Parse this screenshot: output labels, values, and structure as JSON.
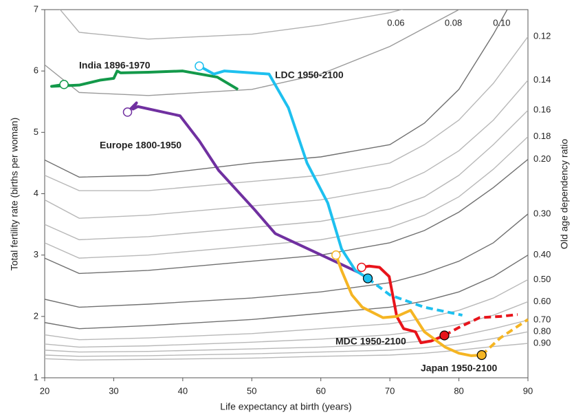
{
  "chart_data": {
    "type": "line",
    "x_label": "Life expectancy at birth (years)",
    "y_label": "Total fertility rate (births per woman)",
    "y2_label": "Old age dependency ratio",
    "xlim": [
      20,
      90
    ],
    "xticks": [
      20,
      30,
      40,
      50,
      60,
      70,
      80,
      90
    ],
    "ylim": [
      1,
      7
    ],
    "yticks": [
      1,
      2,
      3,
      4,
      5,
      6,
      7
    ],
    "contour_x": [
      20,
      25,
      35,
      50,
      60,
      70,
      75,
      80,
      85,
      90
    ],
    "contours": [
      {
        "label": "0.06",
        "color": "#b0b0b0",
        "values": [
          7.3,
          6.63,
          6.52,
          6.6,
          6.75,
          6.95,
          7.1,
          7.3,
          7.6,
          7.9
        ]
      },
      {
        "label": "0.08",
        "color": "#9a9a9a",
        "values": [
          6.1,
          5.65,
          5.6,
          5.7,
          5.95,
          6.4,
          6.7,
          7.0,
          7.5,
          8.0
        ]
      },
      {
        "label": "0.10",
        "color": "#707070",
        "values": [
          4.55,
          4.27,
          4.3,
          4.5,
          4.6,
          4.8,
          5.15,
          5.7,
          6.6,
          7.6
        ]
      },
      {
        "label": "0.12",
        "color": "#b8b8b8",
        "values": [
          4.3,
          4.05,
          4.05,
          4.2,
          4.3,
          4.5,
          4.8,
          5.2,
          5.8,
          6.56
        ]
      },
      {
        "label": "0.14",
        "color": "#b8b8b8",
        "values": [
          3.9,
          3.6,
          3.65,
          3.8,
          3.9,
          4.1,
          4.35,
          4.7,
          5.2,
          5.85
        ]
      },
      {
        "label": "0.16",
        "color": "#b8b8b8",
        "values": [
          3.5,
          3.25,
          3.3,
          3.45,
          3.55,
          3.75,
          3.95,
          4.3,
          4.8,
          5.36
        ]
      },
      {
        "label": "0.18",
        "color": "#b8b8b8",
        "values": [
          3.2,
          2.95,
          3.0,
          3.15,
          3.25,
          3.45,
          3.65,
          3.95,
          4.4,
          4.93
        ]
      },
      {
        "label": "0.20",
        "color": "#707070",
        "values": [
          2.95,
          2.7,
          2.75,
          2.9,
          3.0,
          3.2,
          3.4,
          3.7,
          4.1,
          4.56
        ]
      },
      {
        "label": "0.30",
        "color": "#707070",
        "values": [
          2.28,
          2.15,
          2.2,
          2.3,
          2.4,
          2.55,
          2.7,
          2.9,
          3.2,
          3.67
        ]
      },
      {
        "label": "0.40",
        "color": "#707070",
        "values": [
          1.9,
          1.8,
          1.85,
          1.95,
          2.05,
          2.15,
          2.25,
          2.4,
          2.65,
          3.0
        ]
      },
      {
        "label": "0.50",
        "color": "#b8b8b8",
        "values": [
          1.7,
          1.62,
          1.65,
          1.72,
          1.8,
          1.88,
          1.97,
          2.1,
          2.3,
          2.6
        ]
      },
      {
        "label": "0.60",
        "color": "#b8b8b8",
        "values": [
          1.55,
          1.5,
          1.52,
          1.58,
          1.63,
          1.7,
          1.77,
          1.87,
          2.02,
          2.24
        ]
      },
      {
        "label": "0.70",
        "color": "#b8b8b8",
        "values": [
          1.45,
          1.42,
          1.43,
          1.47,
          1.5,
          1.55,
          1.6,
          1.68,
          1.8,
          1.94
        ]
      },
      {
        "label": "0.80",
        "color": "#b8b8b8",
        "values": [
          1.37,
          1.35,
          1.36,
          1.39,
          1.42,
          1.45,
          1.49,
          1.55,
          1.64,
          1.75
        ]
      },
      {
        "label": "0.90",
        "color": "#b8b8b8",
        "values": [
          1.31,
          1.29,
          1.3,
          1.32,
          1.35,
          1.37,
          1.4,
          1.45,
          1.51,
          1.56
        ]
      }
    ],
    "series": [
      {
        "name": "India 1896-1970",
        "color": "#13994a",
        "x": [
          22.8,
          21,
          25,
          28,
          30,
          30.5,
          31,
          35,
          40,
          45,
          48
        ],
        "values": [
          5.78,
          5.75,
          5.77,
          5.85,
          5.88,
          6.0,
          5.97,
          5.98,
          6.0,
          5.9,
          5.7
        ]
      },
      {
        "name": "Europe 1800-1950",
        "color": "#7030a0",
        "x": [
          32,
          33.3,
          32.8,
          33.5,
          39.6,
          42.4,
          45.2,
          50.4,
          53.4,
          65.8
        ],
        "values": [
          5.33,
          5.48,
          5.38,
          5.42,
          5.27,
          4.86,
          4.38,
          3.74,
          3.35,
          2.7
        ]
      },
      {
        "name": "LDC 1950-2100",
        "color": "#1ec0ef",
        "dash_from": 9,
        "x": [
          42.4,
          44.5,
          46,
          52.5,
          55.3,
          58,
          61,
          63,
          65,
          66.8,
          70,
          75,
          80.5
        ],
        "values": [
          6.08,
          5.95,
          6.0,
          5.95,
          5.4,
          4.5,
          3.85,
          3.1,
          2.75,
          2.62,
          2.35,
          2.15,
          2.02
        ]
      },
      {
        "name": "MDC 1950-2100",
        "color": "#e8141b",
        "dash_from": 9,
        "x": [
          65.9,
          67,
          68.5,
          69.9,
          71,
          72,
          73.7,
          74.5,
          76,
          77.9,
          80,
          83,
          86,
          88.5
        ],
        "values": [
          2.8,
          2.82,
          2.8,
          2.65,
          2.0,
          1.8,
          1.75,
          1.57,
          1.6,
          1.69,
          1.82,
          1.98,
          2.0,
          2.03
        ]
      },
      {
        "name": "Japan 1950-2100",
        "color": "#f5b523",
        "dash_from": 11,
        "x": [
          62.2,
          63,
          64.5,
          66,
          69,
          71,
          73,
          75,
          78,
          80,
          81.8,
          83.3,
          86,
          90
        ],
        "values": [
          3.0,
          2.75,
          2.35,
          2.15,
          1.98,
          2.0,
          2.1,
          1.75,
          1.5,
          1.4,
          1.36,
          1.37,
          1.65,
          1.95
        ]
      }
    ]
  }
}
